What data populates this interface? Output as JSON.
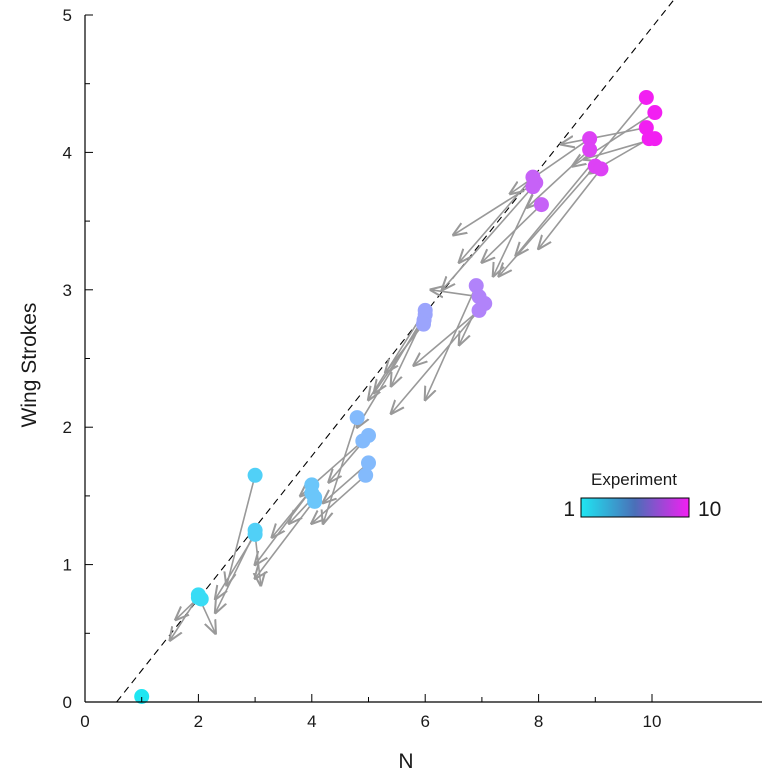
{
  "chart_data": {
    "type": "scatter",
    "title": "",
    "xlabel": "N",
    "ylabel": "Wing Strokes",
    "xlim": [
      0,
      12
    ],
    "ylim": [
      0,
      5
    ],
    "xticks": [
      "0",
      "2",
      "4",
      "6",
      "8",
      "10"
    ],
    "yticks": [
      "0",
      "1",
      "2",
      "3",
      "4",
      "5"
    ],
    "grid": false,
    "legend": {
      "title": "Experiment",
      "min_label": "1",
      "max_label": "10",
      "colors": [
        "#1fe6f2",
        "#4a6fb8",
        "#f21ff2"
      ],
      "placement": "right-middle"
    },
    "reference_line": {
      "slope": 0.52,
      "intercept": -0.29,
      "style": "dashed"
    },
    "points": [
      {
        "x": 1.0,
        "y": 0.04,
        "experiment": 1
      },
      {
        "x": 2.0,
        "y": 0.76,
        "experiment": 2
      },
      {
        "x": 2.0,
        "y": 0.78,
        "experiment": 2
      },
      {
        "x": 2.05,
        "y": 0.75,
        "experiment": 2
      },
      {
        "x": 3.0,
        "y": 1.65,
        "experiment": 3
      },
      {
        "x": 3.0,
        "y": 1.25,
        "experiment": 3
      },
      {
        "x": 3.0,
        "y": 1.22,
        "experiment": 3
      },
      {
        "x": 4.0,
        "y": 1.58,
        "experiment": 4
      },
      {
        "x": 4.0,
        "y": 1.52,
        "experiment": 4
      },
      {
        "x": 4.05,
        "y": 1.49,
        "experiment": 4
      },
      {
        "x": 4.05,
        "y": 1.46,
        "experiment": 4
      },
      {
        "x": 4.8,
        "y": 2.07,
        "experiment": 5
      },
      {
        "x": 4.9,
        "y": 1.9,
        "experiment": 5
      },
      {
        "x": 5.0,
        "y": 1.94,
        "experiment": 5
      },
      {
        "x": 5.0,
        "y": 1.74,
        "experiment": 5
      },
      {
        "x": 4.95,
        "y": 1.65,
        "experiment": 5
      },
      {
        "x": 6.0,
        "y": 2.85,
        "experiment": 6
      },
      {
        "x": 6.0,
        "y": 2.82,
        "experiment": 6
      },
      {
        "x": 5.98,
        "y": 2.78,
        "experiment": 6
      },
      {
        "x": 5.97,
        "y": 2.75,
        "experiment": 6
      },
      {
        "x": 6.9,
        "y": 3.03,
        "experiment": 7
      },
      {
        "x": 6.95,
        "y": 2.95,
        "experiment": 7
      },
      {
        "x": 7.05,
        "y": 2.9,
        "experiment": 7
      },
      {
        "x": 6.95,
        "y": 2.85,
        "experiment": 7
      },
      {
        "x": 7.9,
        "y": 3.82,
        "experiment": 8
      },
      {
        "x": 7.95,
        "y": 3.78,
        "experiment": 8
      },
      {
        "x": 7.9,
        "y": 3.75,
        "experiment": 8
      },
      {
        "x": 8.05,
        "y": 3.62,
        "experiment": 8
      },
      {
        "x": 8.9,
        "y": 4.1,
        "experiment": 9
      },
      {
        "x": 8.9,
        "y": 4.02,
        "experiment": 9
      },
      {
        "x": 9.0,
        "y": 3.9,
        "experiment": 9
      },
      {
        "x": 9.1,
        "y": 3.88,
        "experiment": 9
      },
      {
        "x": 9.9,
        "y": 4.4,
        "experiment": 10
      },
      {
        "x": 10.05,
        "y": 4.29,
        "experiment": 10
      },
      {
        "x": 9.9,
        "y": 4.18,
        "experiment": 10
      },
      {
        "x": 9.95,
        "y": 4.1,
        "experiment": 10
      },
      {
        "x": 10.05,
        "y": 4.1,
        "experiment": 10
      }
    ],
    "arrows": [
      {
        "from": [
          2.0,
          0.77
        ],
        "to": [
          1.5,
          0.45
        ]
      },
      {
        "from": [
          2.0,
          0.77
        ],
        "to": [
          2.3,
          0.5
        ]
      },
      {
        "from": [
          2.0,
          0.76
        ],
        "to": [
          1.6,
          0.6
        ]
      },
      {
        "from": [
          3.0,
          1.65
        ],
        "to": [
          2.5,
          0.85
        ]
      },
      {
        "from": [
          3.0,
          1.24
        ],
        "to": [
          2.3,
          0.65
        ]
      },
      {
        "from": [
          3.0,
          1.22
        ],
        "to": [
          2.3,
          0.75
        ]
      },
      {
        "from": [
          3.0,
          1.22
        ],
        "to": [
          3.1,
          0.85
        ]
      },
      {
        "from": [
          4.0,
          1.55
        ],
        "to": [
          3.0,
          1.0
        ]
      },
      {
        "from": [
          4.0,
          1.55
        ],
        "to": [
          3.3,
          1.2
        ]
      },
      {
        "from": [
          4.05,
          1.5
        ],
        "to": [
          3.6,
          1.3
        ]
      },
      {
        "from": [
          4.05,
          1.47
        ],
        "to": [
          3.0,
          0.9
        ]
      },
      {
        "from": [
          4.8,
          2.07
        ],
        "to": [
          4.2,
          1.3
        ]
      },
      {
        "from": [
          4.9,
          1.9
        ],
        "to": [
          3.8,
          1.5
        ]
      },
      {
        "from": [
          5.0,
          1.94
        ],
        "to": [
          4.3,
          1.6
        ]
      },
      {
        "from": [
          5.0,
          1.74
        ],
        "to": [
          4.2,
          1.45
        ]
      },
      {
        "from": [
          4.95,
          1.65
        ],
        "to": [
          4.0,
          1.3
        ]
      },
      {
        "from": [
          6.0,
          2.85
        ],
        "to": [
          5.0,
          2.2
        ]
      },
      {
        "from": [
          6.0,
          2.82
        ],
        "to": [
          4.8,
          2.0
        ]
      },
      {
        "from": [
          5.98,
          2.78
        ],
        "to": [
          5.1,
          2.25
        ]
      },
      {
        "from": [
          5.97,
          2.75
        ],
        "to": [
          5.3,
          2.4
        ]
      },
      {
        "from": [
          6.0,
          2.82
        ],
        "to": [
          5.4,
          2.3
        ]
      },
      {
        "from": [
          6.9,
          3.03
        ],
        "to": [
          6.0,
          2.2
        ]
      },
      {
        "from": [
          6.95,
          2.95
        ],
        "to": [
          6.1,
          3.0
        ]
      },
      {
        "from": [
          7.05,
          2.9
        ],
        "to": [
          5.4,
          2.1
        ]
      },
      {
        "from": [
          6.95,
          2.85
        ],
        "to": [
          5.8,
          2.45
        ]
      },
      {
        "from": [
          7.0,
          2.95
        ],
        "to": [
          6.6,
          2.6
        ]
      },
      {
        "from": [
          7.9,
          3.82
        ],
        "to": [
          6.6,
          3.2
        ]
      },
      {
        "from": [
          7.95,
          3.78
        ],
        "to": [
          6.5,
          3.4
        ]
      },
      {
        "from": [
          7.9,
          3.75
        ],
        "to": [
          6.3,
          3.0
        ]
      },
      {
        "from": [
          8.05,
          3.62
        ],
        "to": [
          7.0,
          3.2
        ]
      },
      {
        "from": [
          7.95,
          3.75
        ],
        "to": [
          7.2,
          3.1
        ]
      },
      {
        "from": [
          8.9,
          4.1
        ],
        "to": [
          7.5,
          3.7
        ]
      },
      {
        "from": [
          8.9,
          4.02
        ],
        "to": [
          7.8,
          3.6
        ]
      },
      {
        "from": [
          9.0,
          3.9
        ],
        "to": [
          7.3,
          3.1
        ]
      },
      {
        "from": [
          9.1,
          3.88
        ],
        "to": [
          8.0,
          3.3
        ]
      },
      {
        "from": [
          9.9,
          4.4
        ],
        "to": [
          7.6,
          3.25
        ]
      },
      {
        "from": [
          10.05,
          4.29
        ],
        "to": [
          8.6,
          3.9
        ]
      },
      {
        "from": [
          9.9,
          4.18
        ],
        "to": [
          8.4,
          4.06
        ]
      },
      {
        "from": [
          9.95,
          4.1
        ],
        "to": [
          8.9,
          3.85
        ]
      },
      {
        "from": [
          10.05,
          4.1
        ],
        "to": [
          8.8,
          3.95
        ]
      }
    ]
  }
}
